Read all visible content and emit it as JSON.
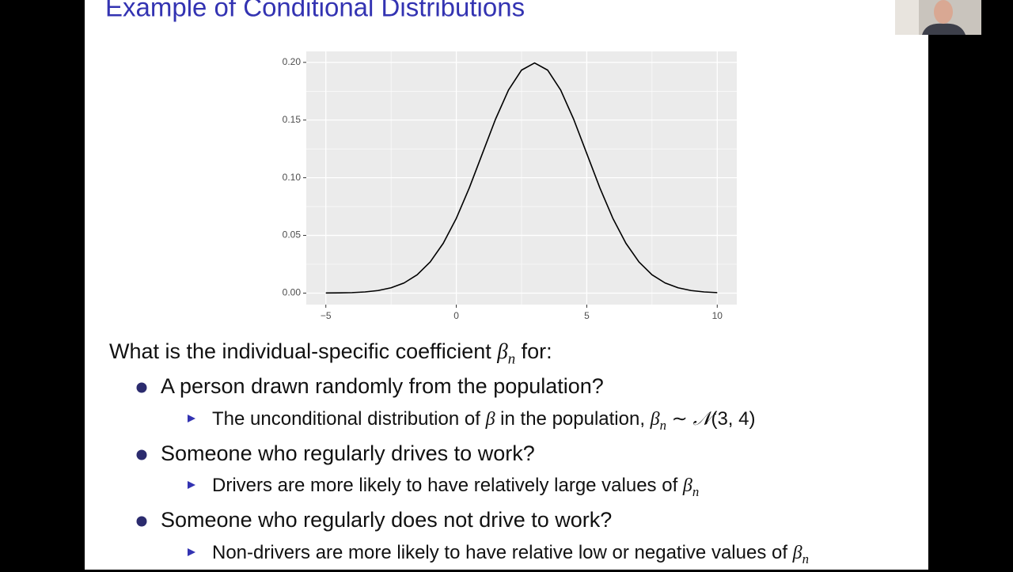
{
  "slide": {
    "title": "Example of Conditional Distributions",
    "lines": [
      {
        "level": 0,
        "segments": [
          "What is the individual-specific coefficient ",
          {
            "math": "β",
            "sub": "n"
          },
          " for:"
        ]
      },
      {
        "level": 1,
        "segments": [
          "A person drawn randomly from the population?"
        ]
      },
      {
        "level": 2,
        "segments": [
          "The unconditional distribution of ",
          {
            "math": "β"
          },
          " in the population, ",
          {
            "math": "β",
            "sub": "n"
          },
          " ∼ ",
          {
            "math": "𝒩"
          },
          "(3, 4)"
        ]
      },
      {
        "level": 1,
        "segments": [
          "Someone who regularly drives to work?"
        ]
      },
      {
        "level": 2,
        "segments": [
          "Drivers are more likely to have relatively large values of ",
          {
            "math": "β",
            "sub": "n"
          }
        ]
      },
      {
        "level": 1,
        "segments": [
          "Someone who regularly does not drive to work?"
        ]
      },
      {
        "level": 2,
        "segments": [
          "Non-drivers are more likely to have relative low or negative values of ",
          {
            "math": "β",
            "sub": "n"
          }
        ]
      }
    ]
  },
  "chart_data": {
    "type": "line",
    "x": [
      -5,
      -4.5,
      -4,
      -3.5,
      -3,
      -2.5,
      -2,
      -1.5,
      -1,
      -0.5,
      0,
      0.5,
      1,
      1.5,
      2,
      2.5,
      3,
      3.5,
      4,
      4.5,
      5,
      5.5,
      6,
      6.5,
      7,
      7.5,
      8,
      8.5,
      9,
      9.5,
      10
    ],
    "values": [
      0.0001,
      0.0002,
      0.0004,
      0.001,
      0.0022,
      0.0046,
      0.0088,
      0.0159,
      0.027,
      0.0432,
      0.0648,
      0.0913,
      0.121,
      0.1506,
      0.176,
      0.1933,
      0.1995,
      0.1933,
      0.176,
      0.1506,
      0.121,
      0.0913,
      0.0648,
      0.0432,
      0.027,
      0.0159,
      0.0088,
      0.0046,
      0.0022,
      0.001,
      0.0004
    ],
    "color": "#000000",
    "xlim": [
      -5.75,
      10.75
    ],
    "ylim": [
      -0.00997,
      0.2095
    ],
    "xticks": [
      {
        "value": -5,
        "label": "−5"
      },
      0,
      5,
      10
    ],
    "yticks": [
      {
        "value": 0,
        "label": "0.00"
      },
      {
        "value": 0.05,
        "label": "0.05"
      },
      {
        "value": 0.1,
        "label": "0.10"
      },
      {
        "value": 0.15,
        "label": "0.15"
      },
      {
        "value": 0.2,
        "label": "0.20"
      }
    ],
    "x_minor_grid": [
      -2.5,
      2.5,
      7.5
    ],
    "y_minor_grid": [
      0.025,
      0.075,
      0.125,
      0.175
    ],
    "grid": true
  }
}
